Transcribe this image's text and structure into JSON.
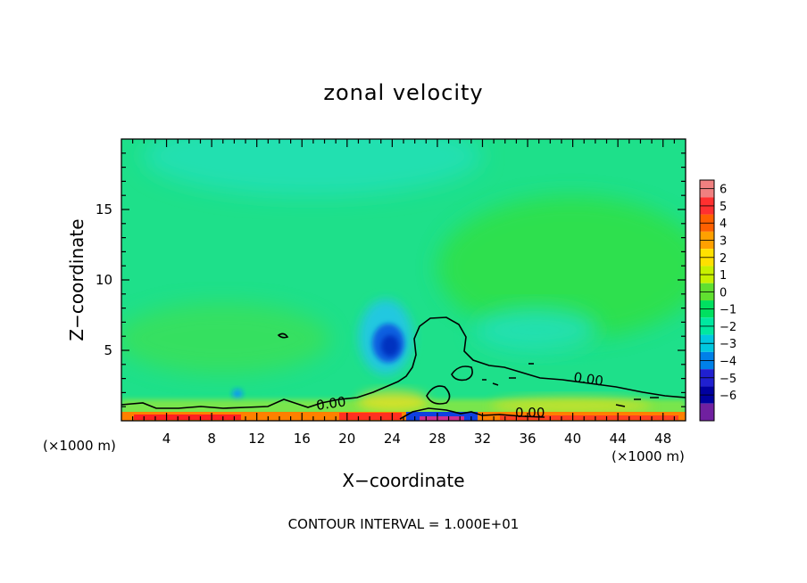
{
  "chart_data": {
    "type": "heatmap",
    "title": "zonal velocity",
    "xlabel": "X−coordinate",
    "ylabel": "Z−coordinate",
    "x_unit_left": "(×1000 m)",
    "x_unit_right": "(×1000 m)",
    "xlim": [
      0,
      50
    ],
    "ylim": [
      0,
      20
    ],
    "x_ticks": [
      4,
      8,
      12,
      16,
      20,
      24,
      28,
      32,
      36,
      40,
      44,
      48
    ],
    "y_ticks": [
      5,
      10,
      15
    ],
    "footer": "CONTOUR INTERVAL = 1.000E+01",
    "contour_labels": [
      {
        "text": "0.00",
        "x": 18.5,
        "z": 1.3
      },
      {
        "text": "0.00",
        "x": 36.5,
        "z": 0.5
      },
      {
        "text": "0.00",
        "x": 42.0,
        "z": 2.8
      }
    ],
    "colorbar": {
      "levels": [
        "6",
        "5",
        "4",
        "3",
        "2",
        "1",
        "0",
        "−1",
        "−2",
        "−3",
        "−4",
        "−5",
        "−6"
      ],
      "colors": [
        "#f08080",
        "#ff3030",
        "#ff6000",
        "#ffa000",
        "#ffe000",
        "#c8f000",
        "#60e030",
        "#00e060",
        "#00e8a0",
        "#00c8e0",
        "#0080e8",
        "#2020d0",
        "#0000a0",
        "#7020a0"
      ]
    }
  }
}
